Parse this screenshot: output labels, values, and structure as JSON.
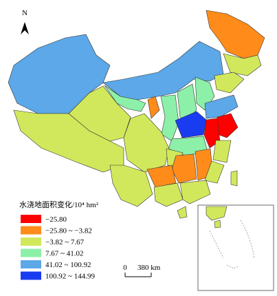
{
  "legend": {
    "title": "水浇地面积变化/10⁴ hm²",
    "items": [
      {
        "label": "−25.80",
        "color": "#ff0000"
      },
      {
        "label": "−25.80 ~ −3.82",
        "color": "#ff8c1a"
      },
      {
        "label": "−3.82 ~ 7.67",
        "color": "#d2e85c"
      },
      {
        "label": "7.67 ~ 41.02",
        "color": "#8cf0a8"
      },
      {
        "label": "41.02 ~ 100.92",
        "color": "#5ca8e8"
      },
      {
        "label": "100.92 ~ 144.99",
        "color": "#1a3cf0"
      }
    ]
  },
  "north": "N",
  "scale_bar": {
    "start": "0",
    "end": "380 km"
  }
}
